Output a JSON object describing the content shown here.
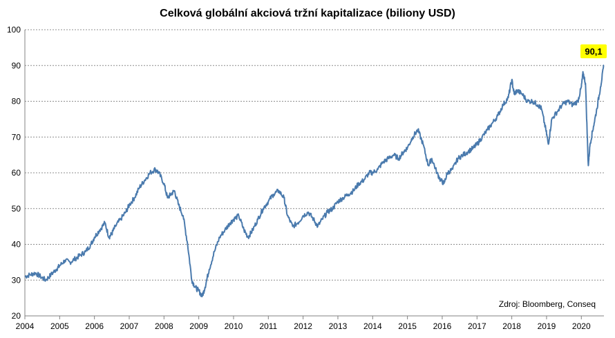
{
  "chart_data": {
    "type": "line",
    "title": "Celková globální akciová tržní kapitalizace (biliony USD)",
    "source": "Zdroj: Bloomberg, Conseq",
    "xlim": [
      2004,
      2020.65
    ],
    "ylim": [
      20,
      100
    ],
    "yticks": [
      20,
      30,
      40,
      50,
      60,
      70,
      80,
      90,
      100
    ],
    "xticks": [
      "2004",
      "2005",
      "2006",
      "2007",
      "2008",
      "2009",
      "2010",
      "2011",
      "2012",
      "2013",
      "2014",
      "2015",
      "2016",
      "2017",
      "2018",
      "2019",
      "2020"
    ],
    "grid": true,
    "callout": {
      "label": "90,1",
      "value": 90.1,
      "color": "#ffff00"
    },
    "line_color": "#4a7aad",
    "series": [
      {
        "x": [
          2004.0,
          2004.15,
          2004.3,
          2004.45,
          2004.6,
          2004.75,
          2004.9,
          2005.0,
          2005.15,
          2005.3,
          2005.45,
          2005.6,
          2005.75,
          2005.9,
          2006.0,
          2006.15,
          2006.3,
          2006.42,
          2006.5,
          2006.6,
          2006.75,
          2006.9,
          2007.0,
          2007.15,
          2007.3,
          2007.45,
          2007.6,
          2007.75,
          2007.85,
          2008.0,
          2008.1,
          2008.2,
          2008.3,
          2008.42,
          2008.55,
          2008.68,
          2008.8,
          2008.9,
          2009.0,
          2009.1,
          2009.18,
          2009.3,
          2009.45,
          2009.6,
          2009.75,
          2009.9,
          2010.0,
          2010.15,
          2010.3,
          2010.42,
          2010.55,
          2010.7,
          2010.85,
          2011.0,
          2011.15,
          2011.3,
          2011.45,
          2011.55,
          2011.7,
          2011.85,
          2012.0,
          2012.15,
          2012.3,
          2012.42,
          2012.55,
          2012.7,
          2012.85,
          2013.0,
          2013.15,
          2013.3,
          2013.45,
          2013.6,
          2013.75,
          2013.9,
          2014.0,
          2014.15,
          2014.3,
          2014.45,
          2014.6,
          2014.75,
          2014.9,
          2015.0,
          2015.15,
          2015.3,
          2015.45,
          2015.6,
          2015.7,
          2015.85,
          2015.95,
          2016.05,
          2016.15,
          2016.3,
          2016.45,
          2016.6,
          2016.75,
          2016.9,
          2017.0,
          2017.15,
          2017.3,
          2017.45,
          2017.6,
          2017.75,
          2017.9,
          2018.0,
          2018.07,
          2018.15,
          2018.3,
          2018.45,
          2018.6,
          2018.75,
          2018.85,
          2018.98,
          2019.05,
          2019.15,
          2019.3,
          2019.45,
          2019.6,
          2019.75,
          2019.9,
          2020.0,
          2020.05,
          2020.12,
          2020.2,
          2020.25,
          2020.35,
          2020.45,
          2020.55,
          2020.65
        ],
        "values": [
          31,
          31.5,
          32,
          31,
          30,
          31.5,
          33,
          34,
          35.5,
          35,
          36,
          37,
          38,
          40,
          42,
          44,
          46,
          42,
          43,
          45,
          47,
          49,
          51,
          53,
          56,
          58,
          60,
          61,
          60,
          57,
          53,
          54,
          55,
          51,
          48,
          40,
          30,
          28,
          27,
          25.5,
          28,
          33,
          38,
          42,
          44,
          46,
          47,
          48,
          44,
          42,
          44,
          47,
          50,
          52,
          54,
          55,
          53,
          48,
          45,
          46,
          48,
          49,
          47,
          45,
          47,
          49,
          50,
          52,
          53,
          54,
          55,
          57,
          58,
          60,
          60,
          61,
          63,
          64,
          65,
          64,
          66,
          67,
          70,
          72,
          68,
          62,
          64,
          60,
          58,
          57,
          60,
          61,
          64,
          65,
          66,
          67,
          68,
          70,
          72,
          74,
          76,
          79,
          81,
          86,
          82,
          83,
          82,
          80,
          80,
          79,
          78,
          72,
          68,
          75,
          77,
          79,
          80,
          79,
          80,
          84,
          88,
          85,
          62,
          68,
          73,
          78,
          84,
          90.1
        ]
      }
    ]
  }
}
